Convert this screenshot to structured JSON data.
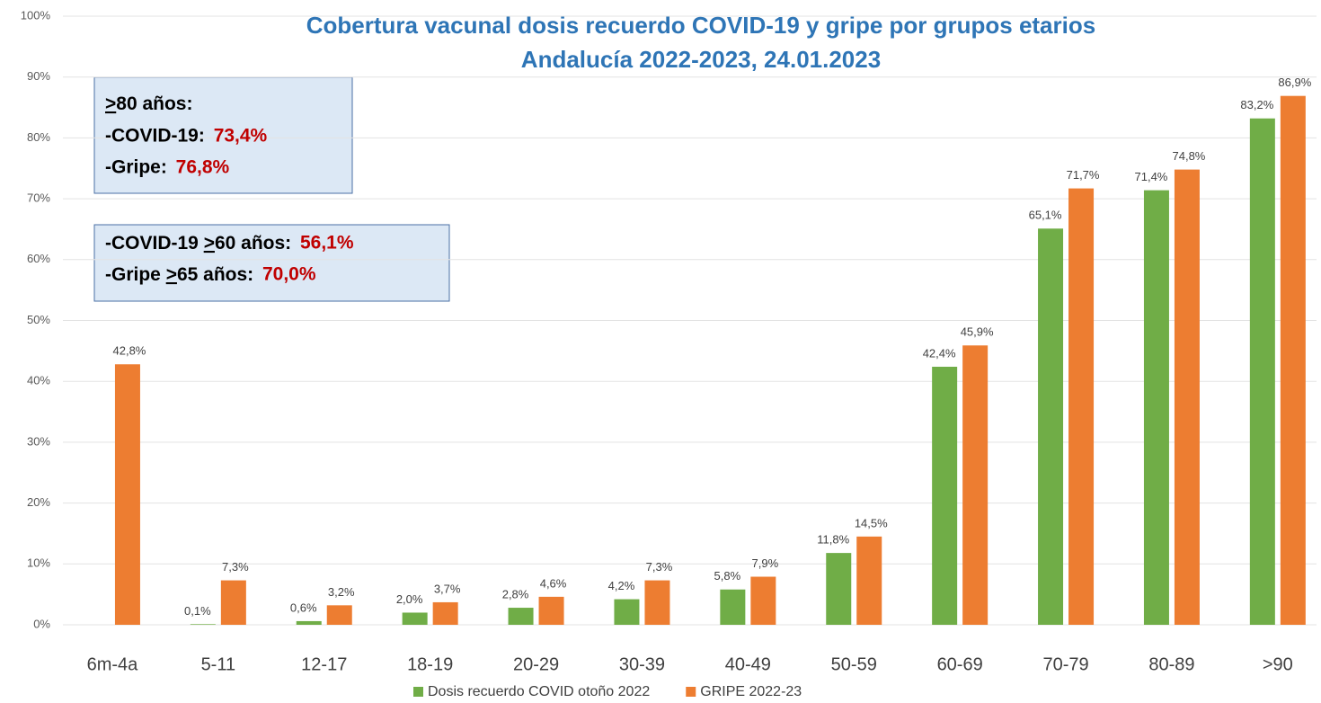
{
  "chart_data": {
    "type": "bar",
    "title": "Cobertura vacunal dosis recuerdo COVID-19 y gripe por grupos etarios",
    "subtitle": "Andalucía 2022-2023, 24.01.2023",
    "categories": [
      "6m-4a",
      "5-11",
      "12-17",
      "18-19",
      "20-29",
      "30-39",
      "40-49",
      "50-59",
      "60-69",
      "70-79",
      "80-89",
      ">90"
    ],
    "series": [
      {
        "name": "Dosis recuerdo COVID otoño 2022",
        "color": "#70ad47",
        "values": [
          null,
          0.1,
          0.6,
          2.0,
          2.8,
          4.2,
          5.8,
          11.8,
          42.4,
          65.1,
          71.4,
          83.2
        ],
        "value_labels": [
          null,
          "0,1%",
          "0,6%",
          "2,0%",
          "2,8%",
          "4,2%",
          "5,8%",
          "11,8%",
          "42,4%",
          "65,1%",
          "71,4%",
          "83,2%"
        ]
      },
      {
        "name": "GRIPE 2022-23",
        "color": "#ed7d31",
        "values": [
          42.8,
          7.3,
          3.2,
          3.7,
          4.6,
          7.3,
          7.9,
          14.5,
          45.9,
          71.7,
          74.8,
          86.9
        ],
        "value_labels": [
          "42,8%",
          "7,3%",
          "3,2%",
          "3,7%",
          "4,6%",
          "7,3%",
          "7,9%",
          "14,5%",
          "45,9%",
          "71,7%",
          "74,8%",
          "86,9%"
        ]
      }
    ],
    "ylim": [
      0,
      100
    ],
    "yticks": [
      {
        "value": 0,
        "label": "0%"
      },
      {
        "value": 10,
        "label": "10%"
      },
      {
        "value": 20,
        "label": "20%"
      },
      {
        "value": 30,
        "label": "30%"
      },
      {
        "value": 40,
        "label": "40%"
      },
      {
        "value": 50,
        "label": "50%"
      },
      {
        "value": 60,
        "label": "60%"
      },
      {
        "value": 70,
        "label": "70%"
      },
      {
        "value": 80,
        "label": "80%"
      },
      {
        "value": 90,
        "label": "90%"
      },
      {
        "value": 100,
        "label": "100%"
      }
    ],
    "grid": true,
    "legend": "bottom",
    "annotations": [
      {
        "title": ">80 años:",
        "lines": [
          {
            "label": "-COVID-19: ",
            "value": "73,4%"
          },
          {
            "label": "-Gripe: ",
            "value": "76,8%"
          }
        ]
      },
      {
        "lines": [
          {
            "label": "-COVID-19 >60 años: ",
            "value": "56,1%"
          },
          {
            "label": "-Gripe >65 años: ",
            "value": "70,0%"
          }
        ]
      }
    ]
  }
}
